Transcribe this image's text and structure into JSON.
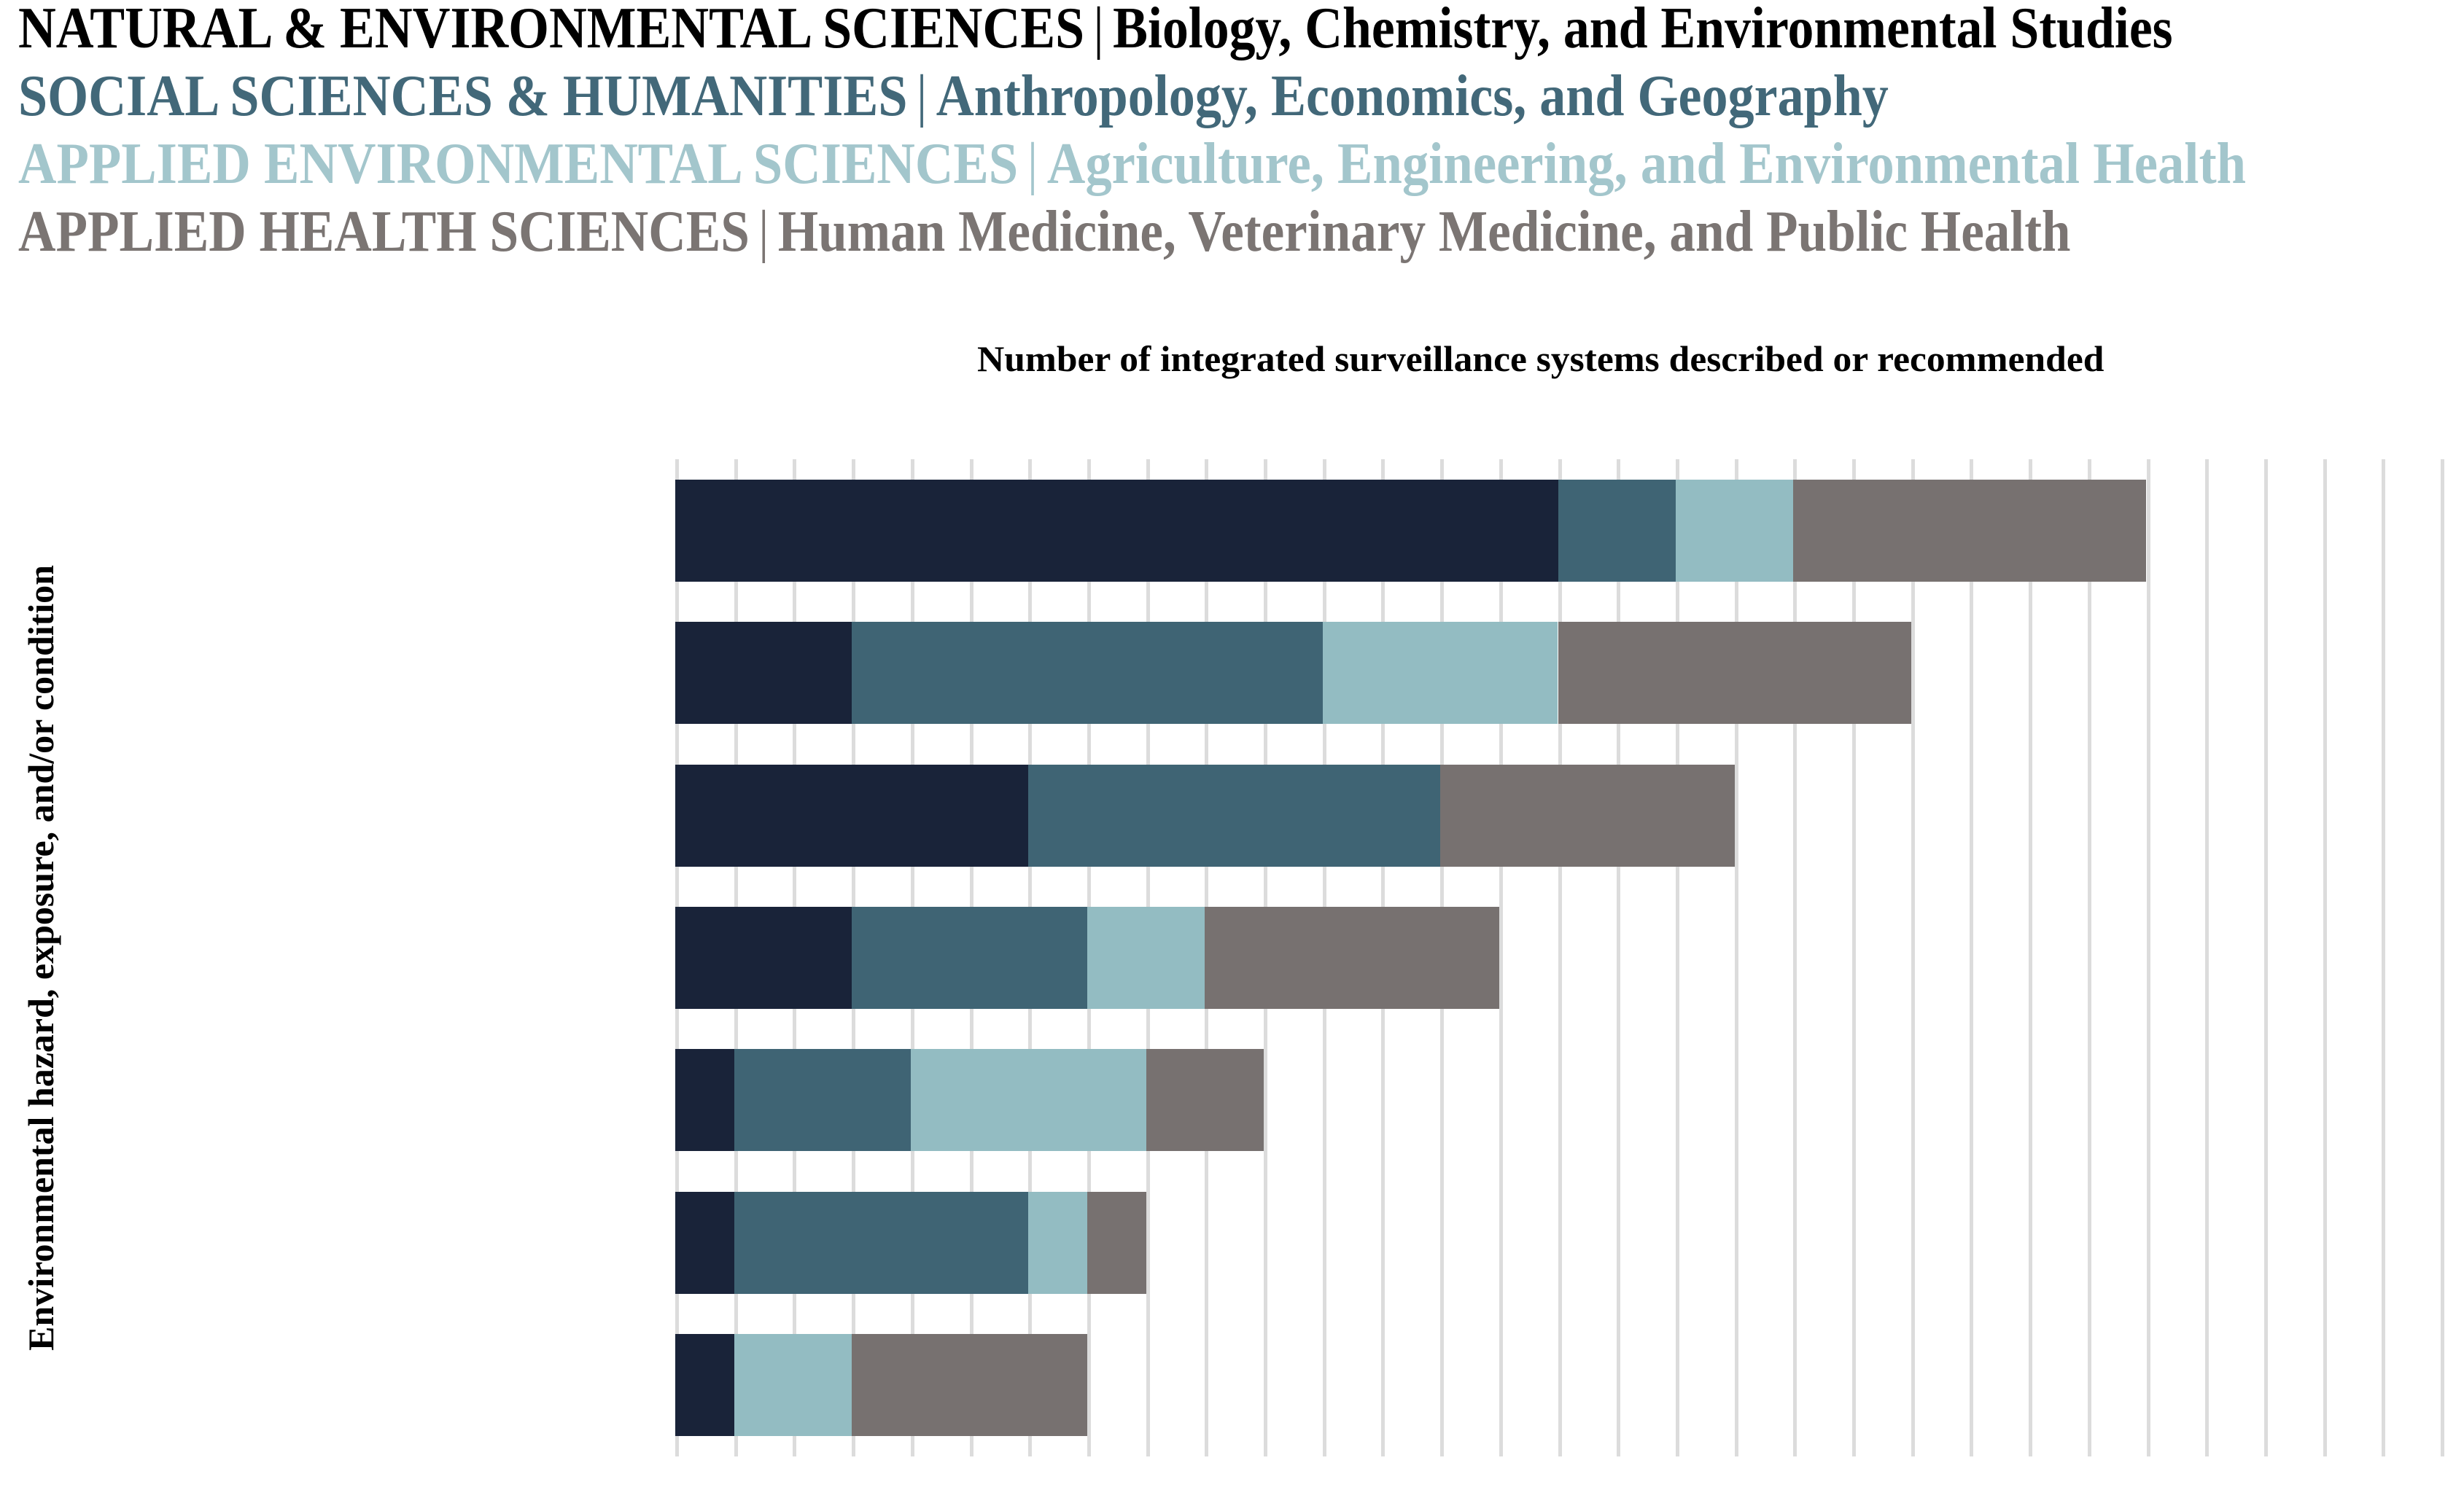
{
  "legend": {
    "separator": "|",
    "items": [
      {
        "group": "NATURAL & ENVIRONMENTAL SCIENCES",
        "desc": "Biology, Chemistry, and Environmental Studies",
        "color": "#000000"
      },
      {
        "group": "SOCIAL SCIENCES & HUMANITIES",
        "desc": "Anthropology, Economics, and Geography",
        "color": "#426879"
      },
      {
        "group": "APPLIED ENVIRONMENTAL SCIENCES",
        "desc": "Agriculture, Engineering, and Environmental Health",
        "color": "#a3c6cc"
      },
      {
        "group": "APPLIED HEALTH SCIENCES",
        "desc": "Human Medicine, Veterinary Medicine, and Public Health",
        "color": "#7b7573"
      }
    ]
  },
  "chart_data": {
    "type": "bar",
    "orientation": "horizontal-stacked",
    "title": "",
    "xlabel": "Number of integrated surveillance systems described or recommended",
    "ylabel": "Environmental hazard, exposure, and/or condition",
    "xlim": [
      0,
      30
    ],
    "gridline_interval": 1,
    "grid": "vertical",
    "legend_position": "top",
    "x_tick_labels_visible": false,
    "categories": [
      "",
      "",
      "",
      "",
      "",
      "",
      ""
    ],
    "series": [
      {
        "name": "NATURAL & ENVIRONMENTAL SCIENCES",
        "color": "#192339",
        "values": [
          15,
          3,
          6,
          3,
          1,
          1,
          1
        ]
      },
      {
        "name": "SOCIAL SCIENCES & HUMANITIES",
        "color": "#3f6474",
        "values": [
          2,
          8,
          7,
          4,
          3,
          5,
          0
        ]
      },
      {
        "name": "APPLIED ENVIRONMENTAL SCIENCES",
        "color": "#93bcc2",
        "values": [
          2,
          4,
          0,
          2,
          4,
          1,
          2
        ]
      },
      {
        "name": "APPLIED HEALTH SCIENCES",
        "color": "#777170",
        "values": [
          6,
          6,
          5,
          5,
          2,
          1,
          4
        ]
      }
    ],
    "totals": [
      25,
      21,
      18,
      14,
      10,
      8,
      7
    ],
    "gridline_color": "#dcdcdc"
  }
}
